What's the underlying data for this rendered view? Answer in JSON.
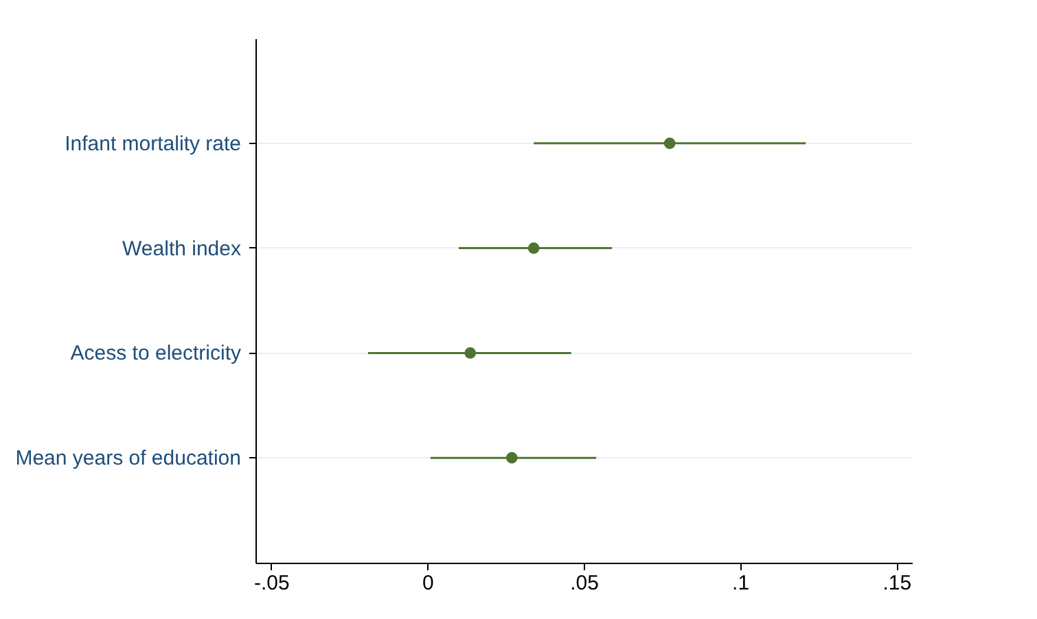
{
  "chart_data": {
    "type": "scatter",
    "categories": [
      "Infant mortality rate",
      "Wealth index",
      "Acess to electricity",
      "Mean years of education"
    ],
    "orientation": "horizontal",
    "series": [
      {
        "color": "#4f7430",
        "values": [
          0.0775,
          0.034,
          0.0137,
          0.027
        ],
        "errors": [
          [
            0.034,
            0.121
          ],
          [
            0.01,
            0.059
          ],
          [
            -0.019,
            0.046
          ],
          [
            0.001,
            0.054
          ]
        ]
      }
    ],
    "xlim": [
      -0.055,
      0.155
    ],
    "xticks": [
      {
        "value": -0.05,
        "label": "-.05"
      },
      0,
      {
        "value": 0.05,
        "label": ".05"
      },
      {
        "value": 0.1,
        "label": ".1"
      },
      {
        "value": 0.15,
        "label": ".15"
      }
    ],
    "grid": "y",
    "marker": "circle"
  }
}
